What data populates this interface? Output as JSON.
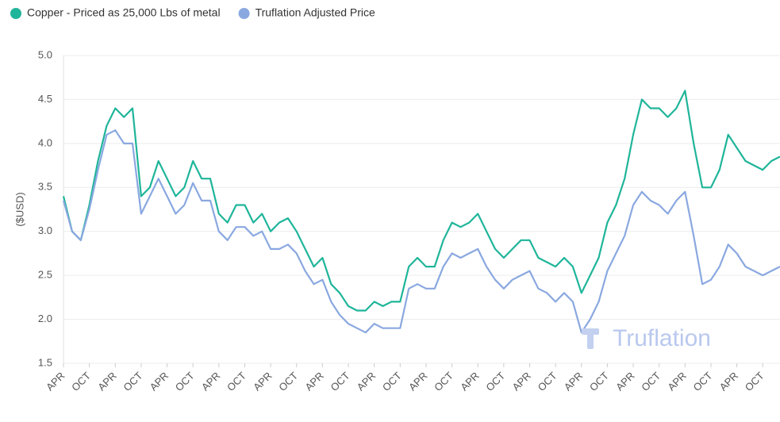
{
  "chart_data": {
    "type": "line",
    "y_label": "($USD)",
    "watermark": "Truflation",
    "categories": [
      "APR",
      null,
      null,
      "OCT",
      null,
      null,
      "APR",
      null,
      null,
      "OCT",
      null,
      null,
      "APR",
      null,
      null,
      "OCT",
      null,
      null,
      "APR",
      null,
      null,
      "OCT",
      null,
      null,
      "APR",
      null,
      null,
      "OCT",
      null,
      null,
      "APR",
      null,
      null,
      "OCT",
      null,
      null,
      "APR",
      null,
      null,
      "OCT",
      null,
      null,
      "APR",
      null,
      null,
      "OCT",
      null,
      null,
      "APR",
      null,
      null,
      "OCT",
      null,
      null,
      "APR",
      null,
      null,
      "OCT",
      null,
      null,
      "APR",
      null,
      null,
      "OCT",
      null,
      null,
      "APR",
      null,
      null,
      "OCT",
      null,
      null,
      "APR",
      null,
      null,
      "OCT",
      null,
      null,
      "APR",
      null,
      null,
      "OCT",
      null,
      null
    ],
    "series": [
      {
        "name": "Copper - Priced as 25,000 Lbs of metal",
        "color": "#1fb59a",
        "values": [
          3.4,
          3.0,
          2.9,
          3.3,
          3.8,
          4.2,
          4.4,
          4.3,
          4.4,
          3.4,
          3.5,
          3.8,
          3.6,
          3.4,
          3.5,
          3.8,
          3.6,
          3.6,
          3.2,
          3.1,
          3.3,
          3.3,
          3.1,
          3.2,
          3.0,
          3.1,
          3.15,
          3.0,
          2.8,
          2.6,
          2.7,
          2.4,
          2.3,
          2.15,
          2.1,
          2.1,
          2.2,
          2.15,
          2.2,
          2.2,
          2.6,
          2.7,
          2.6,
          2.6,
          2.9,
          3.1,
          3.05,
          3.1,
          3.2,
          3.0,
          2.8,
          2.7,
          2.8,
          2.9,
          2.9,
          2.7,
          2.65,
          2.6,
          2.7,
          2.6,
          2.3,
          2.5,
          2.7,
          3.1,
          3.3,
          3.6,
          4.1,
          4.5,
          4.4,
          4.4,
          4.3,
          4.4,
          4.6,
          4.0,
          3.5,
          3.5,
          3.7,
          4.1,
          3.95,
          3.8,
          3.75,
          3.7,
          3.8,
          3.85
        ]
      },
      {
        "name": "Truflation Adjusted Price",
        "color": "#8aa8e0",
        "values": [
          3.35,
          3.0,
          2.9,
          3.25,
          3.7,
          4.1,
          4.15,
          4.0,
          4.0,
          3.2,
          3.4,
          3.6,
          3.4,
          3.2,
          3.3,
          3.55,
          3.35,
          3.35,
          3.0,
          2.9,
          3.05,
          3.05,
          2.95,
          3.0,
          2.8,
          2.8,
          2.85,
          2.75,
          2.55,
          2.4,
          2.45,
          2.2,
          2.05,
          1.95,
          1.9,
          1.85,
          1.95,
          1.9,
          1.9,
          1.9,
          2.35,
          2.4,
          2.35,
          2.35,
          2.6,
          2.75,
          2.7,
          2.75,
          2.8,
          2.6,
          2.45,
          2.35,
          2.45,
          2.5,
          2.55,
          2.35,
          2.3,
          2.2,
          2.3,
          2.2,
          1.85,
          2.0,
          2.2,
          2.55,
          2.75,
          2.95,
          3.3,
          3.45,
          3.35,
          3.3,
          3.2,
          3.35,
          3.45,
          2.95,
          2.4,
          2.45,
          2.6,
          2.85,
          2.75,
          2.6,
          2.55,
          2.5,
          2.55,
          2.6
        ]
      }
    ],
    "ylim": [
      1.5,
      5.0
    ],
    "yticks": [
      1.5,
      {
        "value": 2,
        "label": "2.0"
      },
      2.5,
      {
        "value": 3,
        "label": "3.0"
      },
      3.5,
      {
        "value": 4,
        "label": "4.0"
      },
      4.5,
      {
        "value": 5,
        "label": "5.0"
      }
    ],
    "grid": true
  }
}
